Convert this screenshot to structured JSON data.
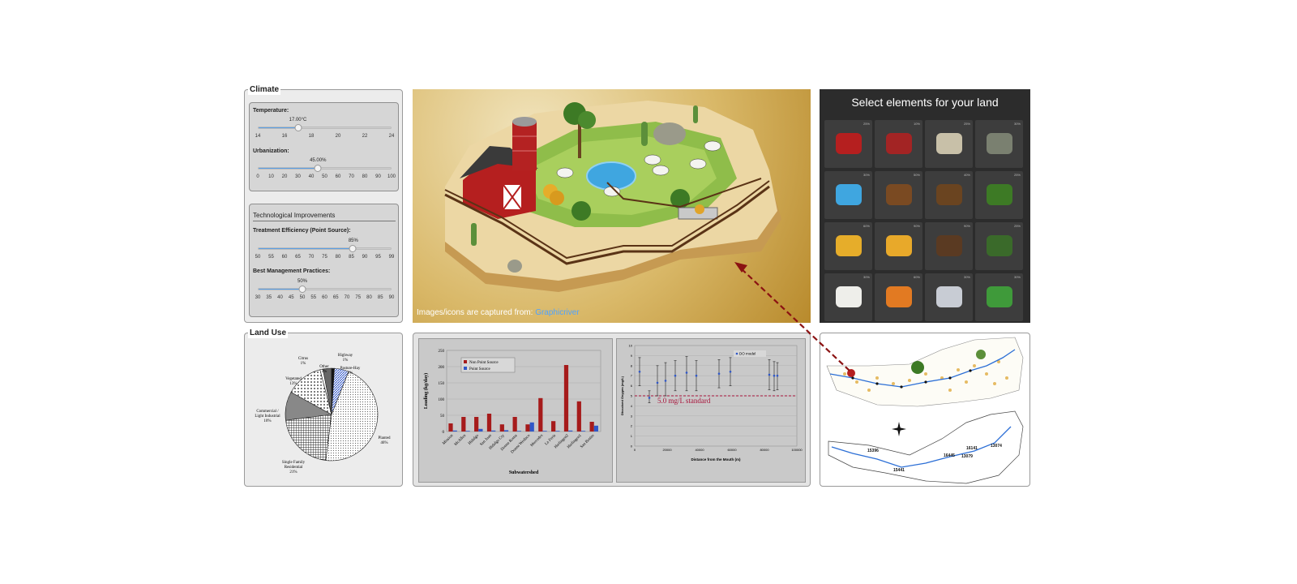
{
  "climate": {
    "legend": "Climate",
    "temperature": {
      "label": "Temperature:",
      "value_text": "17.00°C",
      "value": 17,
      "min": 14,
      "max": 24,
      "ticks": [
        "14",
        "16",
        "18",
        "20",
        "22",
        "24"
      ]
    },
    "urbanization": {
      "label": "Urbanization:",
      "value_text": "45.00%",
      "value": 45,
      "min": 0,
      "max": 100,
      "ticks": [
        "0",
        "10",
        "20",
        "30",
        "40",
        "50",
        "60",
        "70",
        "80",
        "90",
        "100"
      ]
    }
  },
  "tech": {
    "title": "Technological Improvements",
    "treatment": {
      "label": "Treatment Efficiency (Point Source):",
      "value_text": "85%",
      "value": 85,
      "min": 50,
      "max": 99,
      "ticks": [
        "50",
        "55",
        "60",
        "65",
        "70",
        "75",
        "80",
        "85",
        "90",
        "95",
        "99"
      ]
    },
    "bmp": {
      "label": "Best Management Practices:",
      "value_text": "50%",
      "value": 50,
      "min": 30,
      "max": 90,
      "ticks": [
        "30",
        "35",
        "40",
        "45",
        "50",
        "55",
        "60",
        "65",
        "70",
        "75",
        "80",
        "85",
        "90"
      ]
    }
  },
  "landuse": {
    "legend": "Land Use",
    "slices": [
      {
        "label": "Planted",
        "pct": "46%",
        "value": 46,
        "fill": "dots"
      },
      {
        "label": "Single Family Residential",
        "pct": "21%",
        "value": 21,
        "fill": "grid"
      },
      {
        "label": "Commercial / Light Industrial",
        "pct": "10%",
        "value": 10,
        "fill": "dense"
      },
      {
        "label": "Vegetated",
        "pct": "13%",
        "value": 13,
        "fill": "sparse"
      },
      {
        "label": "Citrus",
        "pct": "1%",
        "value": 1,
        "fill": "white"
      },
      {
        "label": "Other",
        "pct": "3%",
        "value": 3,
        "fill": "dark"
      },
      {
        "label": "Highway",
        "pct": "1%",
        "value": 1,
        "fill": "black"
      },
      {
        "label": "Pasture-Hay",
        "pct": "5%",
        "value": 5,
        "fill": "stripe"
      }
    ]
  },
  "farm": {
    "credit_prefix": "Images/icons are captured from:",
    "credit_link": "Graphicriver"
  },
  "picker": {
    "title": "Select elements for your land",
    "tiles": [
      {
        "icon": "barn-icon",
        "pct": "25%"
      },
      {
        "icon": "silo-icon",
        "pct": "10%"
      },
      {
        "icon": "house-icon",
        "pct": "25%"
      },
      {
        "icon": "rock-icon",
        "pct": "30%"
      },
      {
        "icon": "pond-icon",
        "pct": "30%"
      },
      {
        "icon": "logs-icon",
        "pct": "50%"
      },
      {
        "icon": "stump-icon",
        "pct": "40%"
      },
      {
        "icon": "tree-icon",
        "pct": "25%"
      },
      {
        "icon": "hay-bale-icon",
        "pct": "60%"
      },
      {
        "icon": "hay-field-icon",
        "pct": "90%"
      },
      {
        "icon": "plowed-field-icon",
        "pct": "90%"
      },
      {
        "icon": "bush-icon",
        "pct": "25%"
      },
      {
        "icon": "cow-icon",
        "pct": "30%"
      },
      {
        "icon": "factory-icon",
        "pct": "60%"
      },
      {
        "icon": "shop-icon",
        "pct": "30%"
      },
      {
        "icon": "trailer-icon",
        "pct": "30%"
      }
    ]
  },
  "chart_data": [
    {
      "type": "bar",
      "xlabel": "Subwatershed",
      "ylabel": "Loading (kg/day)",
      "ylim": [
        0,
        250
      ],
      "yticks": [
        "0",
        "50",
        "100",
        "150",
        "200",
        "250"
      ],
      "categories": [
        "Mission",
        "McAllen",
        "Hidalgo",
        "San Juan",
        "Hidalgo Cty",
        "Donna Roma",
        "Donna Weslaco",
        "Mercedes",
        "La Feria",
        "Harlingen2",
        "Harlingen1",
        "San Benito"
      ],
      "series": [
        {
          "name": "Non Point Source",
          "color": "#a61b1b",
          "values": [
            25,
            45,
            45,
            55,
            22,
            45,
            22,
            103,
            32,
            205,
            93,
            30
          ]
        },
        {
          "name": "Point Source",
          "color": "#2f57c8",
          "values": [
            3,
            2,
            8,
            3,
            4,
            2,
            28,
            2,
            2,
            3,
            2,
            18
          ]
        }
      ]
    },
    {
      "type": "scatter",
      "xlabel": "Distance from the Mouth (m)",
      "ylabel": "Dissolved Oxygen (mg/L)",
      "xlim": [
        0,
        100000
      ],
      "ylim": [
        0,
        10
      ],
      "xticks": [
        "0",
        "20000",
        "40000",
        "60000",
        "80000",
        "100000"
      ],
      "yticks": [
        "0",
        "1",
        "2",
        "3",
        "4",
        "5",
        "6",
        "7",
        "8",
        "9",
        "10"
      ],
      "legend": "DO model",
      "standard_label": "5.0 mg/L standard",
      "standard": 5.0,
      "points": [
        {
          "x": 3000,
          "y": 7.4,
          "lo": 6.0,
          "hi": 8.8
        },
        {
          "x": 9000,
          "y": 4.8,
          "lo": 4.3,
          "hi": 5.5
        },
        {
          "x": 14000,
          "y": 6.3,
          "lo": 5.0,
          "hi": 8.0
        },
        {
          "x": 19000,
          "y": 6.5,
          "lo": 5.0,
          "hi": 8.3
        },
        {
          "x": 25000,
          "y": 7.0,
          "lo": 5.5,
          "hi": 8.5
        },
        {
          "x": 32000,
          "y": 7.3,
          "lo": 5.5,
          "hi": 8.9
        },
        {
          "x": 38000,
          "y": 7.0,
          "lo": 5.5,
          "hi": 8.5
        },
        {
          "x": 52000,
          "y": 7.2,
          "lo": 5.8,
          "hi": 8.6
        },
        {
          "x": 59000,
          "y": 7.4,
          "lo": 6.0,
          "hi": 8.8
        },
        {
          "x": 83000,
          "y": 7.1,
          "lo": 5.6,
          "hi": 8.6
        },
        {
          "x": 86000,
          "y": 7.0,
          "lo": 5.5,
          "hi": 8.4
        },
        {
          "x": 88000,
          "y": 7.0,
          "lo": 5.6,
          "hi": 8.3
        }
      ]
    }
  ],
  "map": {
    "labels": [
      "15396",
      "15441",
      "16141",
      "13074",
      "13079",
      "16445"
    ]
  }
}
